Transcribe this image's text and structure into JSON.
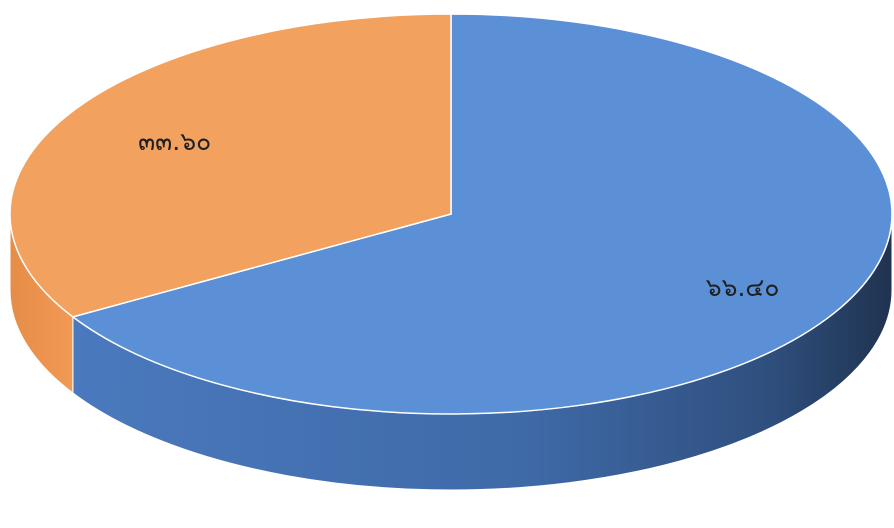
{
  "chart_data": {
    "type": "pie",
    "style": "3d",
    "title": "",
    "legend": "none",
    "slices": [
      {
        "label_text": "๖๖.๔๐",
        "value": 66.4,
        "color": "#5b8fd6",
        "side_color": "#3f6cae"
      },
      {
        "label_text": "๓๓.๖๐",
        "value": 33.6,
        "color": "#f2a15e",
        "side_color": "#d98a47"
      }
    ],
    "start_angle_deg": 270,
    "direction": "clockwise"
  }
}
